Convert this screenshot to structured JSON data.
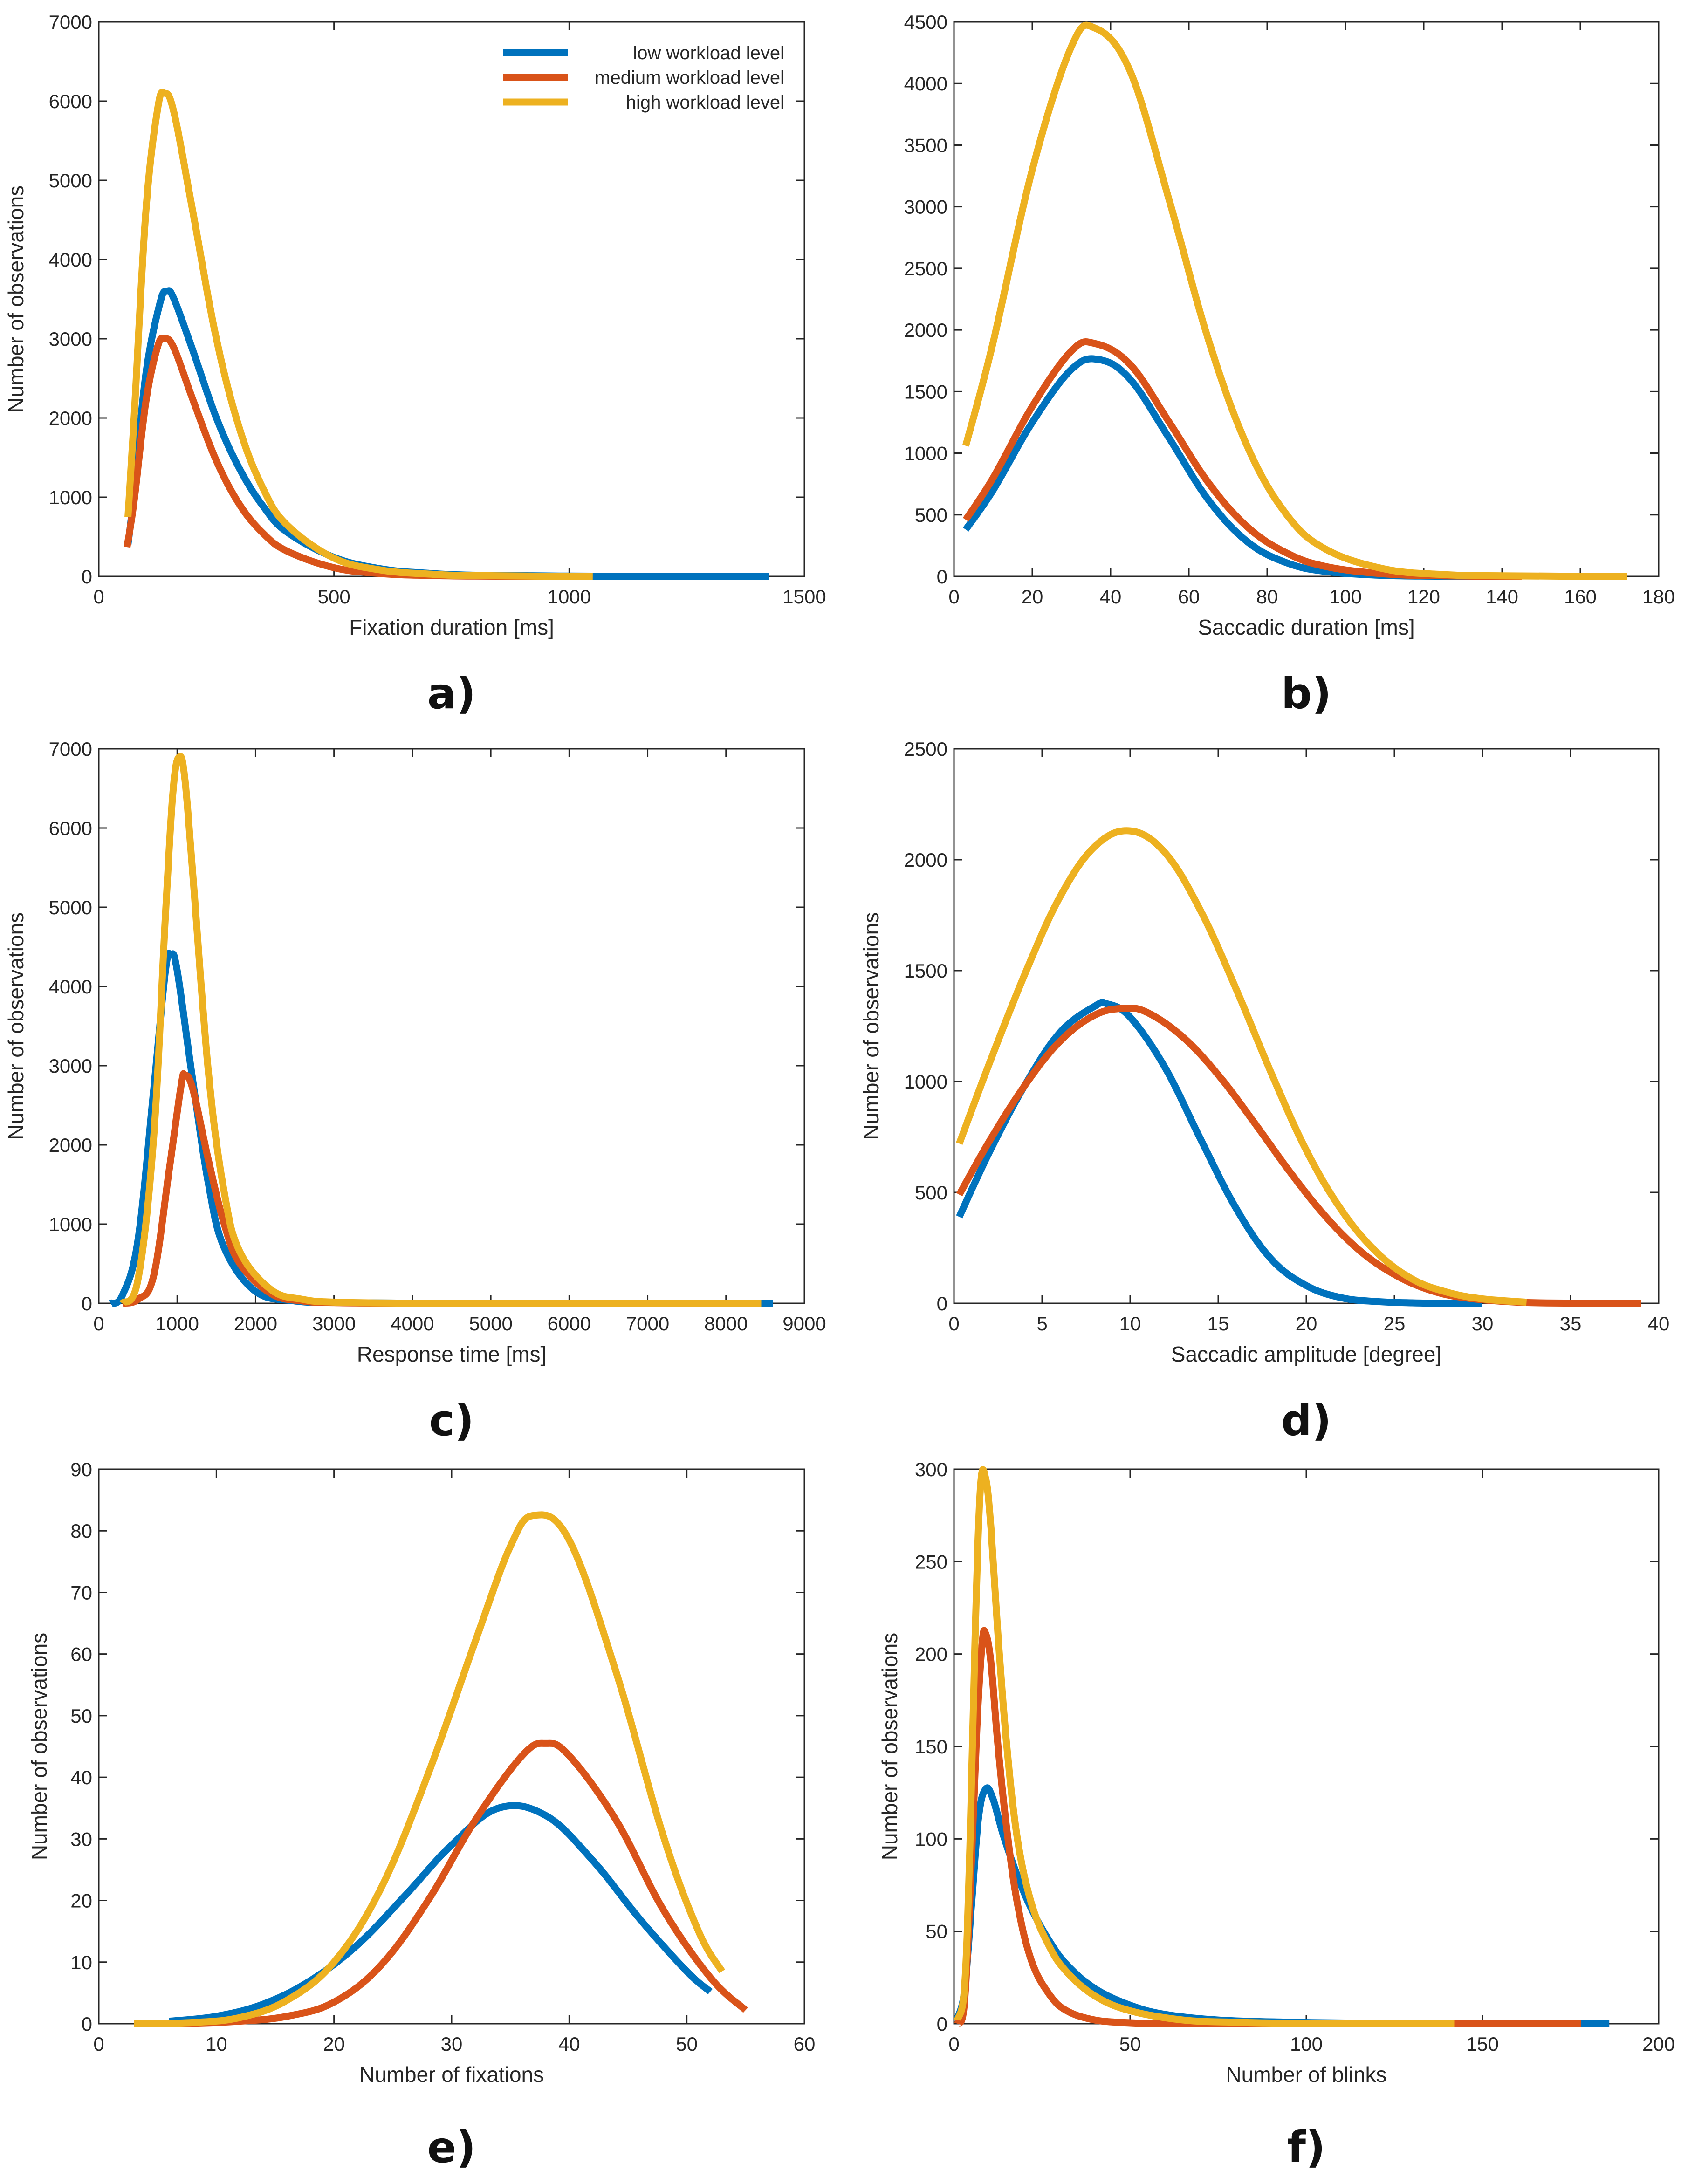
{
  "legend": {
    "entries": [
      "low workload level",
      "medium workload level",
      "high workload level"
    ],
    "colors": [
      "#0072BD",
      "#D95319",
      "#EDB120"
    ],
    "location": "top-right of panel a"
  },
  "chart_data": [
    {
      "id": "a",
      "panel_label": "a)",
      "type": "line",
      "xlabel": "Fixation duration [ms]",
      "ylabel": "Number of observations",
      "xlim": [
        0,
        1500
      ],
      "ylim": [
        0,
        7000
      ],
      "xticks": [
        0,
        500,
        1000,
        1500
      ],
      "yticks": [
        0,
        1000,
        2000,
        3000,
        4000,
        5000,
        6000,
        7000
      ],
      "grid": false,
      "legend": true,
      "series": [
        {
          "name": "low workload level",
          "color": "#0072BD",
          "x": [
            62,
            75,
            100,
            130,
            145,
            160,
            200,
            250,
            300,
            350,
            400,
            500,
            600,
            700,
            800,
            1000,
            1200,
            1425
          ],
          "y": [
            400,
            1050,
            2550,
            3450,
            3600,
            3500,
            2850,
            2000,
            1350,
            880,
            560,
            240,
            95,
            40,
            15,
            4,
            1,
            0
          ]
        },
        {
          "name": "medium workload level",
          "color": "#D95319",
          "x": [
            60,
            75,
            100,
            125,
            140,
            160,
            200,
            250,
            300,
            350,
            400,
            500,
            600,
            700,
            800,
            1000
          ],
          "y": [
            370,
            950,
            2200,
            2900,
            3000,
            2880,
            2230,
            1460,
            900,
            540,
            320,
            110,
            35,
            12,
            4,
            0
          ]
        },
        {
          "name": "high workload level",
          "color": "#EDB120",
          "x": [
            62,
            75,
            100,
            125,
            140,
            160,
            200,
            250,
            300,
            350,
            400,
            500,
            600,
            700,
            800,
            1050
          ],
          "y": [
            750,
            2000,
            4600,
            5900,
            6100,
            5850,
            4600,
            3000,
            1850,
            1100,
            650,
            230,
            80,
            30,
            10,
            0
          ]
        }
      ]
    },
    {
      "id": "b",
      "panel_label": "b)",
      "type": "line",
      "xlabel": "Saccadic duration [ms]",
      "ylabel": "",
      "xlim": [
        0,
        180
      ],
      "ylim": [
        0,
        4500
      ],
      "xticks": [
        0,
        20,
        40,
        60,
        80,
        100,
        120,
        140,
        160,
        180
      ],
      "yticks": [
        0,
        500,
        1000,
        1500,
        2000,
        2500,
        3000,
        3500,
        4000,
        4500
      ],
      "grid": false,
      "legend": false,
      "series": [
        {
          "name": "low workload level",
          "color": "#0072BD",
          "x": [
            3,
            10,
            20,
            30,
            37,
            45,
            55,
            65,
            75,
            85,
            95,
            110,
            125,
            140
          ],
          "y": [
            380,
            700,
            1250,
            1680,
            1760,
            1600,
            1120,
            620,
            280,
            110,
            40,
            8,
            2,
            0
          ]
        },
        {
          "name": "medium workload level",
          "color": "#D95319",
          "x": [
            3,
            10,
            20,
            30,
            36,
            45,
            55,
            65,
            75,
            85,
            95,
            110,
            125,
            145
          ],
          "y": [
            460,
            800,
            1380,
            1830,
            1890,
            1720,
            1250,
            760,
            400,
            190,
            80,
            20,
            5,
            0
          ]
        },
        {
          "name": "high workload level",
          "color": "#EDB120",
          "x": [
            3,
            10,
            20,
            30,
            36,
            45,
            55,
            65,
            75,
            85,
            95,
            110,
            125,
            140,
            172
          ],
          "y": [
            1060,
            1900,
            3300,
            4300,
            4450,
            4100,
            3050,
            1920,
            1050,
            500,
            220,
            60,
            15,
            5,
            0
          ]
        }
      ]
    },
    {
      "id": "c",
      "panel_label": "c)",
      "type": "line",
      "xlabel": "Response time [ms]",
      "ylabel": "Number of observations",
      "xlim": [
        0,
        9000
      ],
      "ylim": [
        0,
        7000
      ],
      "xticks": [
        0,
        1000,
        2000,
        3000,
        4000,
        5000,
        6000,
        7000,
        8000,
        9000
      ],
      "yticks": [
        0,
        1000,
        2000,
        3000,
        4000,
        5000,
        6000,
        7000
      ],
      "grid": false,
      "legend": false,
      "series": [
        {
          "name": "low workload level",
          "color": "#0072BD",
          "x": [
            150,
            300,
            500,
            700,
            850,
            920,
            1000,
            1200,
            1400,
            1600,
            2000,
            2500,
            3000,
            4000,
            6000,
            8600
          ],
          "y": [
            0,
            100,
            800,
            2700,
            4200,
            4400,
            4200,
            2800,
            1500,
            700,
            150,
            30,
            10,
            2,
            0,
            0
          ]
        },
        {
          "name": "medium workload level",
          "color": "#D95319",
          "x": [
            300,
            500,
            700,
            900,
            1050,
            1100,
            1200,
            1400,
            1600,
            1800,
            2200,
            2600,
            3000,
            4000,
            5000
          ],
          "y": [
            0,
            50,
            350,
            1700,
            2750,
            2880,
            2700,
            1800,
            1000,
            500,
            120,
            30,
            8,
            1,
            0
          ]
        },
        {
          "name": "high workload level",
          "color": "#EDB120",
          "x": [
            300,
            500,
            700,
            850,
            950,
            1030,
            1100,
            1200,
            1400,
            1600,
            1800,
            2200,
            2600,
            3000,
            4000,
            6000,
            8450
          ],
          "y": [
            0,
            300,
            2100,
            4900,
            6500,
            6900,
            6600,
            5400,
            2900,
            1400,
            650,
            170,
            50,
            15,
            2,
            0,
            0
          ]
        }
      ]
    },
    {
      "id": "d",
      "panel_label": "d)",
      "type": "line",
      "xlabel": "Saccadic amplitude [degree]",
      "ylabel": "Number of observations",
      "xlim": [
        0,
        40
      ],
      "ylim": [
        0,
        2500
      ],
      "xticks": [
        0,
        5,
        10,
        15,
        20,
        25,
        30,
        35,
        40
      ],
      "yticks": [
        0,
        500,
        1000,
        1500,
        2000,
        2500
      ],
      "grid": false,
      "legend": false,
      "series": [
        {
          "name": "low workload level",
          "color": "#0072BD",
          "x": [
            0.3,
            2,
            4,
            6,
            8,
            8.7,
            10,
            12,
            14,
            16,
            18,
            20,
            22,
            24,
            26,
            28,
            30
          ],
          "y": [
            390,
            680,
            980,
            1220,
            1340,
            1350,
            1290,
            1060,
            740,
            430,
            200,
            80,
            25,
            8,
            2,
            0,
            0
          ]
        },
        {
          "name": "medium workload level",
          "color": "#D95319",
          "x": [
            0.3,
            2,
            4,
            6,
            8,
            9.7,
            11,
            13,
            15,
            17,
            19,
            21,
            23,
            25,
            27,
            29,
            32,
            35,
            39
          ],
          "y": [
            490,
            730,
            980,
            1180,
            1300,
            1330,
            1310,
            1200,
            1030,
            820,
            600,
            400,
            240,
            130,
            60,
            25,
            5,
            1,
            0
          ]
        },
        {
          "name": "high workload level",
          "color": "#EDB120",
          "x": [
            0.3,
            2,
            4,
            6,
            8,
            10,
            12,
            14,
            16,
            18,
            20,
            22,
            24,
            26,
            28,
            30,
            32.5
          ],
          "y": [
            720,
            1080,
            1480,
            1830,
            2060,
            2130,
            2030,
            1770,
            1420,
            1040,
            690,
            420,
            230,
            110,
            50,
            20,
            5
          ]
        }
      ]
    },
    {
      "id": "e",
      "panel_label": "e)",
      "type": "line",
      "xlabel": "Number of fixations",
      "ylabel": "Number of observations",
      "xlim": [
        0,
        60
      ],
      "ylim": [
        0,
        90
      ],
      "xticks": [
        0,
        10,
        20,
        30,
        40,
        50,
        60
      ],
      "yticks": [
        0,
        10,
        20,
        30,
        40,
        50,
        60,
        70,
        80,
        90
      ],
      "grid": false,
      "legend": false,
      "series": [
        {
          "name": "low workload level",
          "color": "#0072BD",
          "x": [
            6,
            10,
            14,
            18,
            22,
            26,
            30,
            34,
            38,
            42,
            46,
            50,
            52
          ],
          "y": [
            0.4,
            1.2,
            3.2,
            7,
            12.8,
            20.7,
            29,
            35,
            33.8,
            26.5,
            17,
            8.5,
            5.2
          ]
        },
        {
          "name": "medium workload level",
          "color": "#D95319",
          "x": [
            3,
            8,
            12,
            16,
            20,
            24,
            28,
            32,
            36,
            38,
            40,
            44,
            48,
            52,
            55
          ],
          "y": [
            0,
            0.1,
            0.4,
            1.2,
            3.5,
            9.5,
            20,
            33,
            43.5,
            45.5,
            43.5,
            33,
            18.5,
            7.5,
            2.2
          ]
        },
        {
          "name": "high workload level",
          "color": "#EDB120",
          "x": [
            3,
            8,
            12,
            16,
            20,
            24,
            28,
            32,
            35,
            37,
            40,
            44,
            48,
            51,
            53
          ],
          "y": [
            0,
            0.2,
            1,
            3.8,
            10,
            22,
            40.5,
            62,
            77.5,
            82.5,
            78.5,
            57,
            30.5,
            15,
            8.5
          ]
        }
      ]
    },
    {
      "id": "f",
      "panel_label": "f)",
      "type": "line",
      "xlabel": "Number of blinks",
      "ylabel": "Number of observations",
      "xlim": [
        0,
        200
      ],
      "ylim": [
        0,
        300
      ],
      "xticks": [
        0,
        50,
        100,
        150,
        200
      ],
      "yticks": [
        0,
        50,
        100,
        150,
        200,
        250,
        300
      ],
      "grid": false,
      "legend": false,
      "series": [
        {
          "name": "low workload level",
          "color": "#0072BD",
          "x": [
            1,
            3,
            5,
            7,
            9,
            11,
            14,
            18,
            22,
            27,
            32,
            40,
            50,
            60,
            75,
            95,
            120,
            150,
            186
          ],
          "y": [
            3,
            18,
            65,
            112,
            127,
            122,
            102,
            80,
            62,
            45,
            32,
            19,
            10,
            5,
            2,
            0.8,
            0.2,
            0,
            0
          ]
        },
        {
          "name": "medium workload level",
          "color": "#D95319",
          "x": [
            1,
            3,
            5,
            6.5,
            8,
            9,
            10.5,
            12.5,
            15,
            18,
            22,
            27,
            32,
            40,
            50,
            60,
            80,
            120,
            178
          ],
          "y": [
            0,
            12,
            90,
            160,
            206,
            211,
            195,
            150,
            105,
            65,
            34,
            16,
            7,
            2,
            0.5,
            0.1,
            0,
            0,
            0
          ]
        },
        {
          "name": "high workload level",
          "color": "#EDB120",
          "x": [
            1,
            3,
            4.5,
            6,
            7.5,
            9,
            10.5,
            12.5,
            15,
            18,
            22,
            27,
            32,
            40,
            50,
            65,
            80,
            100,
            142
          ],
          "y": [
            2,
            20,
            95,
            210,
            290,
            295,
            268,
            210,
            150,
            100,
            65,
            42,
            28,
            15,
            7,
            2,
            0.8,
            0.2,
            0
          ]
        }
      ]
    }
  ]
}
